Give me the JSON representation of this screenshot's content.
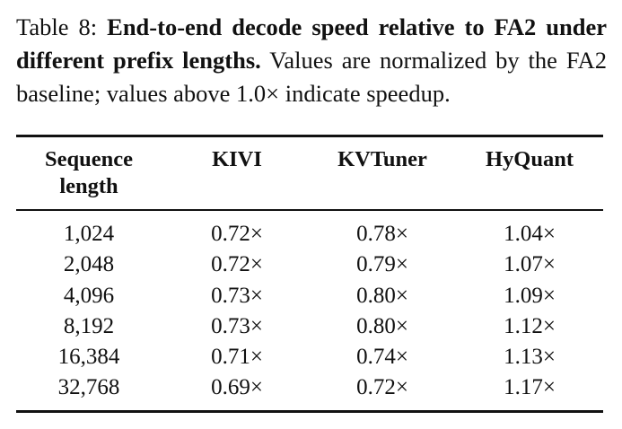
{
  "caption": {
    "label": "Table 8: ",
    "title": "End-to-end decode speed relative to FA2 under different prefix lengths.",
    "body": " Values are normalized by the FA2 baseline; values above 1.0× indicate speedup."
  },
  "table": {
    "headers": [
      "Sequence length",
      "KIVI",
      "KVTuner",
      "HyQuant"
    ],
    "rows": [
      [
        "1,024",
        "0.72×",
        "0.78×",
        "1.04×"
      ],
      [
        "2,048",
        "0.72×",
        "0.79×",
        "1.07×"
      ],
      [
        "4,096",
        "0.73×",
        "0.80×",
        "1.09×"
      ],
      [
        "8,192",
        "0.73×",
        "0.80×",
        "1.12×"
      ],
      [
        "16,384",
        "0.71×",
        "0.74×",
        "1.13×"
      ],
      [
        "32,768",
        "0.69×",
        "0.72×",
        "1.17×"
      ]
    ]
  }
}
